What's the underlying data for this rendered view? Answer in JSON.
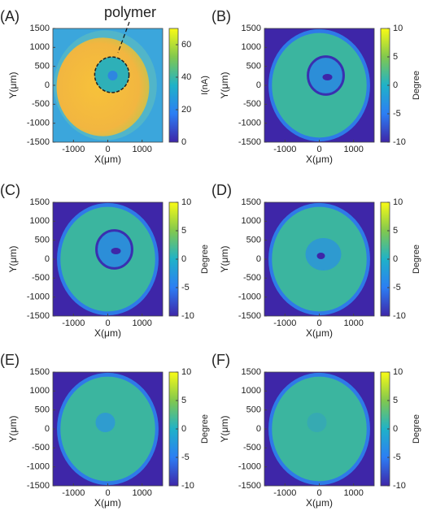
{
  "chart_data": [
    {
      "type": "heatmap",
      "label": "(A)",
      "annotation": "polymer",
      "xlabel": "X(μm)",
      "ylabel": "Y(μm)",
      "xlim": [
        -1600,
        1600
      ],
      "ylim": [
        -1500,
        1500
      ],
      "xticks": [
        -1000,
        0,
        1000
      ],
      "yticks": [
        -1500,
        -1000,
        -500,
        0,
        500,
        1000,
        1500
      ],
      "colorbar": {
        "label": "I(nA)",
        "lim": [
          0,
          70
        ],
        "ticks": [
          0,
          20,
          40,
          60
        ]
      }
    },
    {
      "type": "heatmap",
      "label": "(B)",
      "xlabel": "X(μm)",
      "ylabel": "Y(μm)",
      "xlim": [
        -1600,
        1600
      ],
      "ylim": [
        -1500,
        1500
      ],
      "xticks": [
        -1000,
        0,
        1000
      ],
      "yticks": [
        -1500,
        -1000,
        -500,
        0,
        500,
        1000,
        1500
      ],
      "colorbar": {
        "label": "Degree",
        "lim": [
          -10,
          10
        ],
        "ticks": [
          -10,
          -5,
          0,
          5,
          10
        ]
      }
    },
    {
      "type": "heatmap",
      "label": "(C)",
      "xlabel": "X(μm)",
      "ylabel": "Y(μm)",
      "xlim": [
        -1600,
        1600
      ],
      "ylim": [
        -1500,
        1500
      ],
      "xticks": [
        -1000,
        0,
        1000
      ],
      "yticks": [
        -1500,
        -1000,
        -500,
        0,
        500,
        1000,
        1500
      ],
      "colorbar": {
        "label": "Degree",
        "lim": [
          -10,
          10
        ],
        "ticks": [
          -10,
          -5,
          0,
          5,
          10
        ]
      }
    },
    {
      "type": "heatmap",
      "label": "(D)",
      "xlabel": "X(μm)",
      "ylabel": "Y(μm)",
      "xlim": [
        -1600,
        1600
      ],
      "ylim": [
        -1500,
        1500
      ],
      "xticks": [
        -1000,
        0,
        1000
      ],
      "yticks": [
        -1500,
        -1000,
        -500,
        0,
        500,
        1000,
        1500
      ],
      "colorbar": {
        "label": "Degree",
        "lim": [
          -10,
          10
        ],
        "ticks": [
          -10,
          -5,
          0,
          5,
          10
        ]
      }
    },
    {
      "type": "heatmap",
      "label": "(E)",
      "xlabel": "X(μm)",
      "ylabel": "Y(μm)",
      "xlim": [
        -1600,
        1600
      ],
      "ylim": [
        -1500,
        1500
      ],
      "xticks": [
        -1000,
        0,
        1000
      ],
      "yticks": [
        -1500,
        -1000,
        -500,
        0,
        500,
        1000,
        1500
      ],
      "colorbar": {
        "label": "Degree",
        "lim": [
          -10,
          10
        ],
        "ticks": [
          -10,
          -5,
          0,
          5,
          10
        ]
      }
    },
    {
      "type": "heatmap",
      "label": "(F)",
      "xlabel": "X(μm)",
      "ylabel": "Y(μm)",
      "xlim": [
        -1600,
        1600
      ],
      "ylim": [
        -1500,
        1500
      ],
      "xticks": [
        -1000,
        0,
        1000
      ],
      "yticks": [
        -1500,
        -1000,
        -500,
        0,
        500,
        1000,
        1500
      ],
      "colorbar": {
        "label": "Degree",
        "lim": [
          -10,
          10
        ],
        "ticks": [
          -10,
          -5,
          0,
          5,
          10
        ]
      }
    }
  ]
}
